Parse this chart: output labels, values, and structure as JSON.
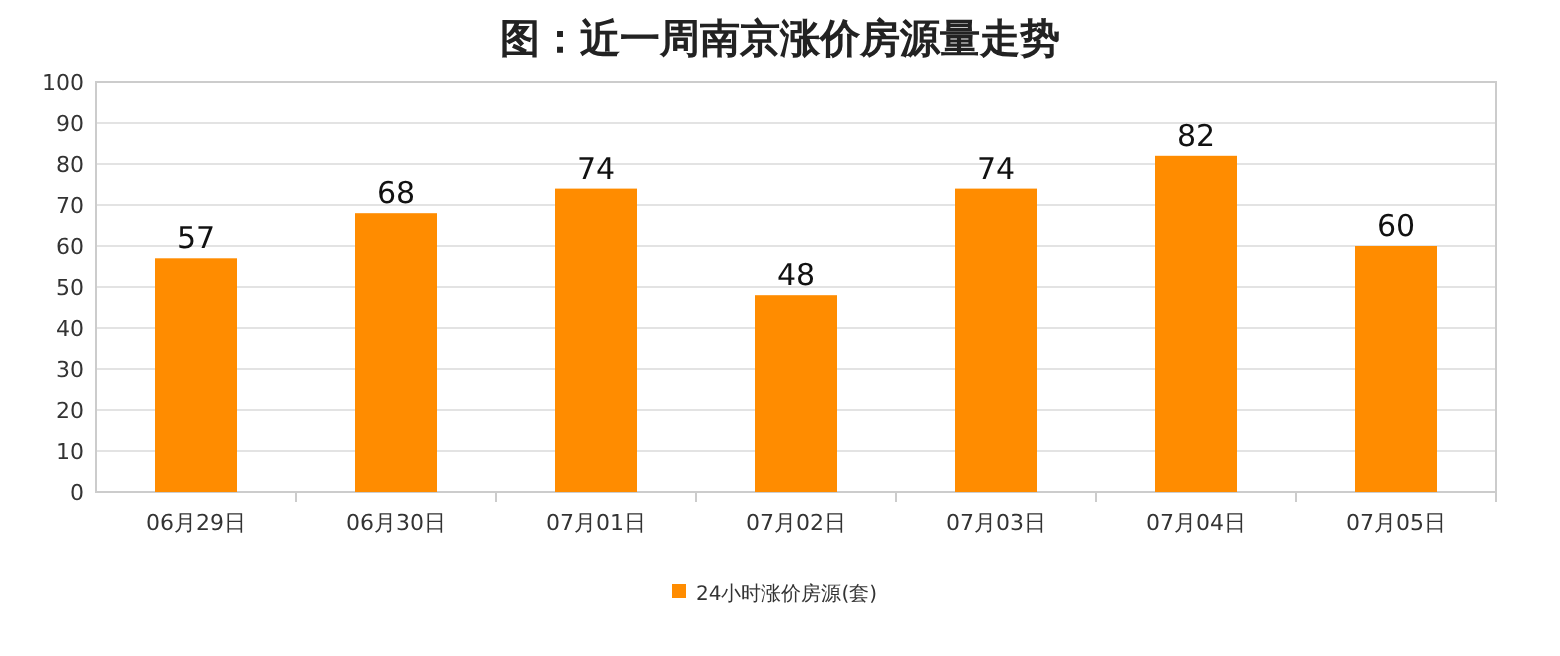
{
  "chart_data": {
    "type": "bar",
    "title": "图：近一周南京涨价房源量走势",
    "categories": [
      "06月29日",
      "06月30日",
      "07月01日",
      "07月02日",
      "07月03日",
      "07月04日",
      "07月05日"
    ],
    "series": [
      {
        "name": "24小时涨价房源(套)",
        "color": "#ff8c00",
        "values": [
          57,
          68,
          74,
          48,
          74,
          82,
          60
        ]
      }
    ],
    "ylim": [
      0,
      100
    ],
    "yticks": [
      0,
      10,
      20,
      30,
      40,
      50,
      60,
      70,
      80,
      90,
      100
    ],
    "grid": "y",
    "data_labels": true,
    "legend": "bottom"
  }
}
